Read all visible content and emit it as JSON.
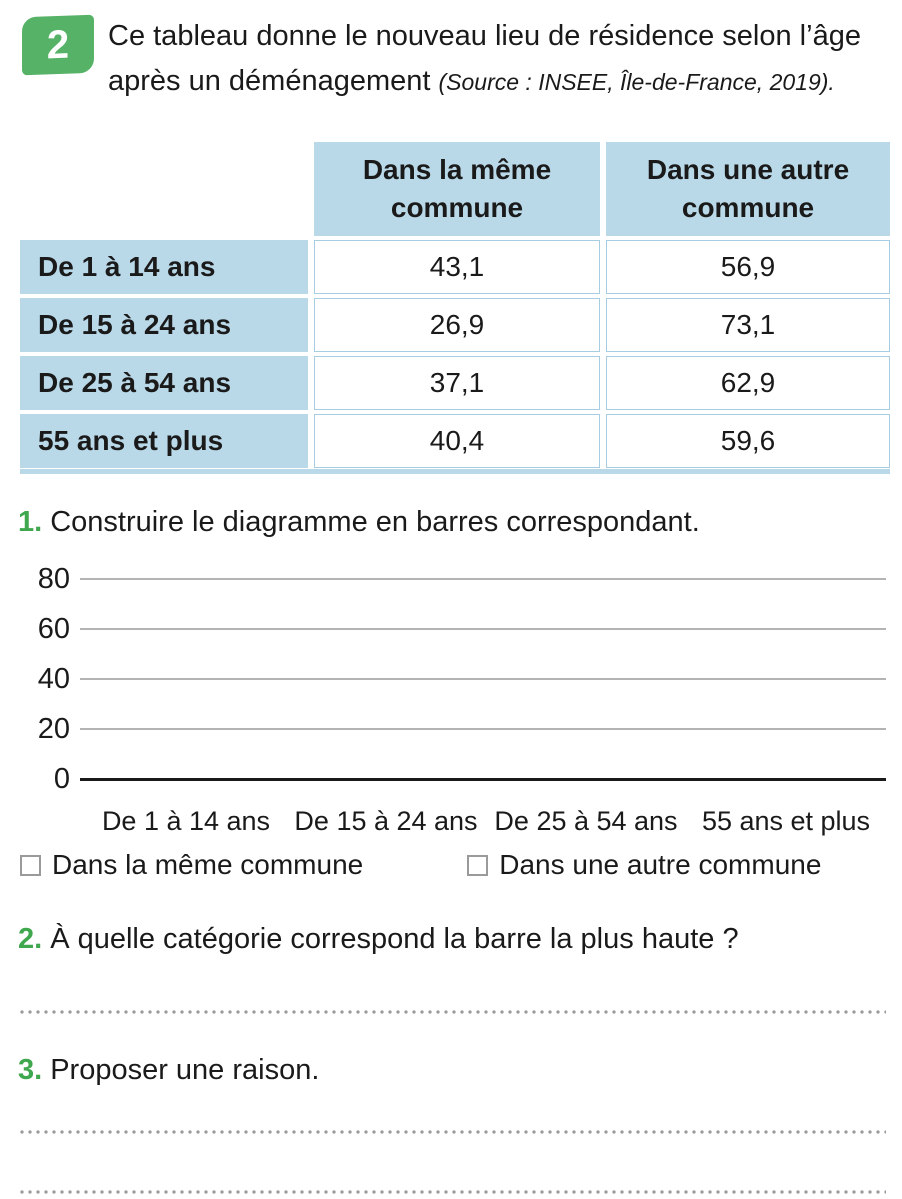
{
  "colors": {
    "badge-green": "#56b266",
    "number-green": "#3fa74e",
    "table-blue": "#b9d8e8",
    "table-border-blue": "#a6cde1",
    "grid-gray": "#b3b3b3",
    "dot-gray": "#9c9c9c",
    "checkbox-gray": "#9a9a9a"
  },
  "header": {
    "exercise_number": "2",
    "intro_text": "Ce tableau donne le nouveau lieu de résidence selon l’âge après un déménagement ",
    "source_text": "(Source : INSEE, Île-de-France, 2019)."
  },
  "table": {
    "column_headers": [
      "Dans la même commune",
      "Dans une autre commune"
    ],
    "rows": [
      {
        "label": "De 1 à 14 ans",
        "same_commune": "43,1",
        "other_commune": "56,9"
      },
      {
        "label": "De 15 à 24 ans",
        "same_commune": "26,9",
        "other_commune": "73,1"
      },
      {
        "label": "De 25 à 54 ans",
        "same_commune": "37,1",
        "other_commune": "62,9"
      },
      {
        "label": "55 ans et plus",
        "same_commune": "40,4",
        "other_commune": "59,6"
      }
    ]
  },
  "questions": [
    {
      "number": "1.",
      "text": "Construire le diagramme en barres correspondant."
    },
    {
      "number": "2.",
      "text": "À quelle catégorie correspond la barre la plus haute ?"
    },
    {
      "number": "3.",
      "text": "Proposer une raison."
    }
  ],
  "chart": {
    "y_axis_ticks": [
      "80",
      "60",
      "40",
      "20",
      "0"
    ],
    "categories": [
      "De 1 à 14 ans",
      "De 15 à 24 ans",
      "De 25 à 54 ans",
      "55 ans et plus"
    ],
    "legend": [
      {
        "label": "Dans la même commune"
      },
      {
        "label": "Dans une autre commune"
      }
    ]
  },
  "chart_data": {
    "type": "bar",
    "title": "",
    "xlabel": "",
    "ylabel": "",
    "categories": [
      "De 1 à 14 ans",
      "De 15 à 24 ans",
      "De 25 à 54 ans",
      "55 ans et plus"
    ],
    "series": [
      {
        "name": "Dans la même commune",
        "values": [
          43.1,
          26.9,
          37.1,
          40.4
        ]
      },
      {
        "name": "Dans une autre commune",
        "values": [
          56.9,
          73.1,
          62.9,
          59.6
        ]
      }
    ],
    "ylim": [
      0,
      80
    ],
    "y_ticks": [
      0,
      20,
      40,
      60,
      80
    ],
    "grid": true,
    "legend_position": "bottom",
    "bars_drawn": false
  }
}
